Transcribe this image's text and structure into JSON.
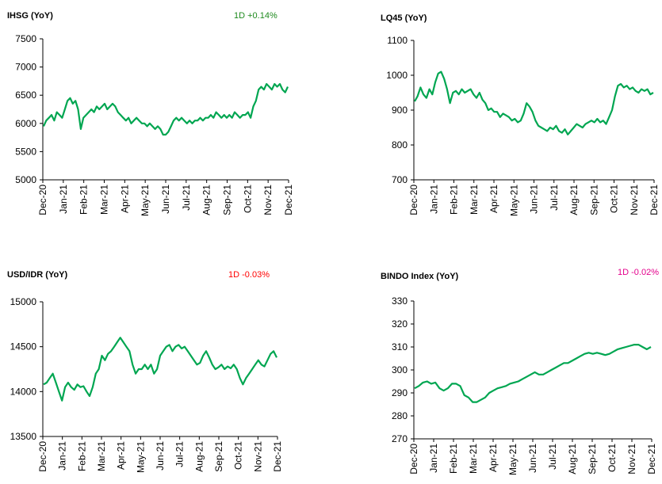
{
  "colors": {
    "line": "#00a651",
    "positive": "#1e8a1e",
    "negative": "#ff0000",
    "negative_alt": "#e4008c"
  },
  "chart_data": [
    {
      "type": "line",
      "title": "IHSG (YoY)",
      "change_label": "1D +0.14%",
      "change_direction": "up",
      "x_tick_labels": [
        "Dec-20",
        "Jan-21",
        "Feb-21",
        "Mar-21",
        "Apr-21",
        "May-21",
        "Jun-21",
        "Jul-21",
        "Aug-21",
        "Sep-21",
        "Oct-21",
        "Nov-21",
        "Dec-21"
      ],
      "y_ticks": [
        5000,
        5500,
        6000,
        6500,
        7000,
        7500
      ],
      "ylim": [
        5000,
        7500
      ],
      "grid": false,
      "series": [
        {
          "values": [
            5950,
            6050,
            6100,
            6150,
            6050,
            6200,
            6150,
            6100,
            6250,
            6400,
            6450,
            6350,
            6400,
            6250,
            5900,
            6100,
            6150,
            6200,
            6250,
            6200,
            6300,
            6250,
            6300,
            6350,
            6250,
            6300,
            6350,
            6300,
            6200,
            6150,
            6100,
            6050,
            6100,
            6000,
            6050,
            6100,
            6050,
            6000,
            6000,
            5950,
            6000,
            5950,
            5900,
            5950,
            5900,
            5800,
            5800,
            5850,
            5950,
            6050,
            6100,
            6050,
            6100,
            6050,
            6000,
            6050,
            6000,
            6050,
            6050,
            6100,
            6050,
            6100,
            6100,
            6150,
            6100,
            6200,
            6150,
            6100,
            6150,
            6100,
            6150,
            6100,
            6200,
            6150,
            6100,
            6150,
            6150,
            6200,
            6100,
            6300,
            6400,
            6600,
            6650,
            6600,
            6700,
            6650,
            6600,
            6700,
            6650,
            6700,
            6600,
            6550,
            6650
          ]
        }
      ]
    },
    {
      "type": "line",
      "title": "LQ45 (YoY)",
      "change_label": "",
      "x_tick_labels": [
        "Dec-20",
        "Jan-21",
        "Feb-21",
        "Mar-21",
        "Apr-21",
        "May-21",
        "Jun-21",
        "Jul-21",
        "Aug-21",
        "Sep-21",
        "Oct-21",
        "Nov-21",
        "Dec-21"
      ],
      "y_ticks": [
        700,
        800,
        900,
        1000,
        1100
      ],
      "ylim": [
        700,
        1100
      ],
      "grid": false,
      "series": [
        {
          "values": [
            925,
            940,
            965,
            945,
            935,
            960,
            945,
            980,
            1005,
            1010,
            990,
            960,
            920,
            950,
            955,
            945,
            960,
            950,
            955,
            960,
            945,
            935,
            950,
            930,
            920,
            900,
            905,
            895,
            895,
            880,
            890,
            885,
            880,
            870,
            875,
            865,
            870,
            890,
            920,
            910,
            895,
            870,
            855,
            850,
            845,
            840,
            850,
            845,
            855,
            840,
            835,
            845,
            830,
            840,
            850,
            860,
            855,
            850,
            860,
            865,
            870,
            865,
            875,
            865,
            870,
            860,
            880,
            900,
            940,
            970,
            975,
            965,
            970,
            960,
            965,
            955,
            950,
            960,
            955,
            960,
            945,
            950
          ]
        }
      ]
    },
    {
      "type": "line",
      "title": "USD/IDR  (YoY)",
      "change_label": "1D -0.03%",
      "change_direction": "down",
      "x_tick_labels": [
        "Dec-20",
        "Jan-21",
        "Feb-21",
        "Mar-21",
        "Apr-21",
        "May-21",
        "Jun-21",
        "Jul-21",
        "Aug-21",
        "Sep-21",
        "Oct-21",
        "Nov-21",
        "Dec-21"
      ],
      "y_ticks": [
        13500,
        14000,
        14500,
        15000
      ],
      "ylim": [
        13500,
        15000
      ],
      "grid": false,
      "series": [
        {
          "values": [
            14080,
            14100,
            14150,
            14200,
            14100,
            14000,
            13900,
            14050,
            14100,
            14050,
            14020,
            14080,
            14050,
            14060,
            14000,
            13950,
            14050,
            14200,
            14250,
            14400,
            14350,
            14420,
            14450,
            14500,
            14550,
            14600,
            14550,
            14500,
            14450,
            14300,
            14200,
            14250,
            14250,
            14300,
            14250,
            14300,
            14200,
            14250,
            14400,
            14450,
            14500,
            14520,
            14450,
            14500,
            14520,
            14480,
            14500,
            14450,
            14400,
            14350,
            14300,
            14320,
            14400,
            14450,
            14380,
            14300,
            14250,
            14270,
            14300,
            14250,
            14280,
            14260,
            14300,
            14250,
            14150,
            14080,
            14150,
            14200,
            14250,
            14300,
            14350,
            14300,
            14280,
            14350,
            14420,
            14450,
            14380
          ]
        }
      ]
    },
    {
      "type": "line",
      "title": "BINDO Index (YoY)",
      "change_label": "1D -0.02%",
      "change_direction": "down",
      "x_tick_labels": [
        "Dec-20",
        "Jan-21",
        "Feb-21",
        "Mar-21",
        "Apr-21",
        "May-21",
        "Jun-21",
        "Jul-21",
        "Aug-21",
        "Sep-21",
        "Oct-21",
        "Nov-21",
        "Dec-21"
      ],
      "y_ticks": [
        270,
        280,
        290,
        300,
        310,
        320,
        330
      ],
      "ylim": [
        270,
        330
      ],
      "grid": false,
      "series": [
        {
          "values": [
            292,
            293,
            294.5,
            295,
            294,
            294.5,
            292,
            291,
            292,
            294,
            294,
            293,
            289,
            288,
            286,
            286,
            287,
            288,
            290,
            291,
            292,
            292.5,
            293,
            294,
            294.5,
            295,
            296,
            297,
            298,
            299,
            298,
            298,
            299,
            300,
            301,
            302,
            303,
            303,
            304,
            305,
            306,
            307,
            307.5,
            307,
            307.5,
            307,
            306.5,
            307,
            308,
            309,
            309.5,
            310,
            310.5,
            311,
            311,
            310,
            309,
            310
          ]
        }
      ]
    }
  ]
}
